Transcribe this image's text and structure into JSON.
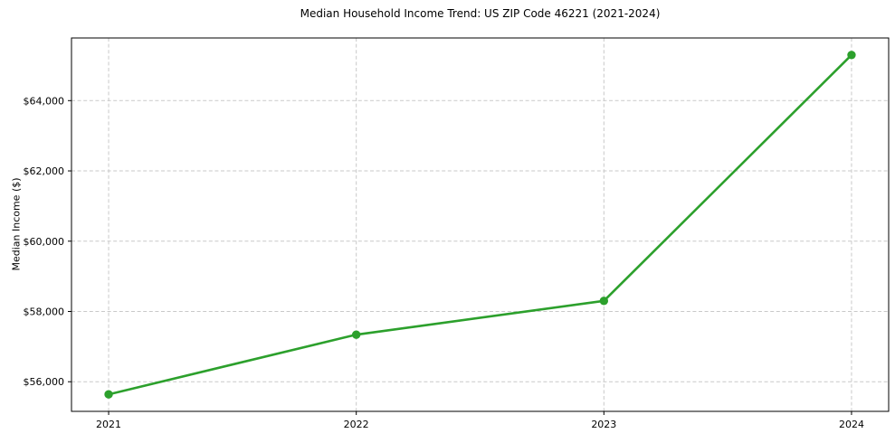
{
  "chart_data": {
    "type": "line",
    "title": "Median Household Income Trend: US ZIP Code 46221 (2021-2024)",
    "xlabel": "",
    "ylabel": "Median Income ($)",
    "x": [
      2021,
      2022,
      2023,
      2024
    ],
    "series": [
      {
        "name": "Median Household Income",
        "values": [
          55640,
          57340,
          58300,
          65300
        ]
      }
    ],
    "xtick_labels": [
      "2021",
      "2022",
      "2023",
      "2024"
    ],
    "ytick_values": [
      56000,
      58000,
      60000,
      62000,
      64000
    ],
    "ytick_labels": [
      "$56,000",
      "$58,000",
      "$60,000",
      "$62,000",
      "$64,000"
    ],
    "xlim": [
      2020.85,
      2024.15
    ],
    "ylim": [
      55157,
      65783
    ],
    "grid": true,
    "grid_style": "dashed",
    "legend": "none",
    "line_color": "#2ca02c",
    "marker": "circle",
    "background_color": "#ffffff"
  }
}
